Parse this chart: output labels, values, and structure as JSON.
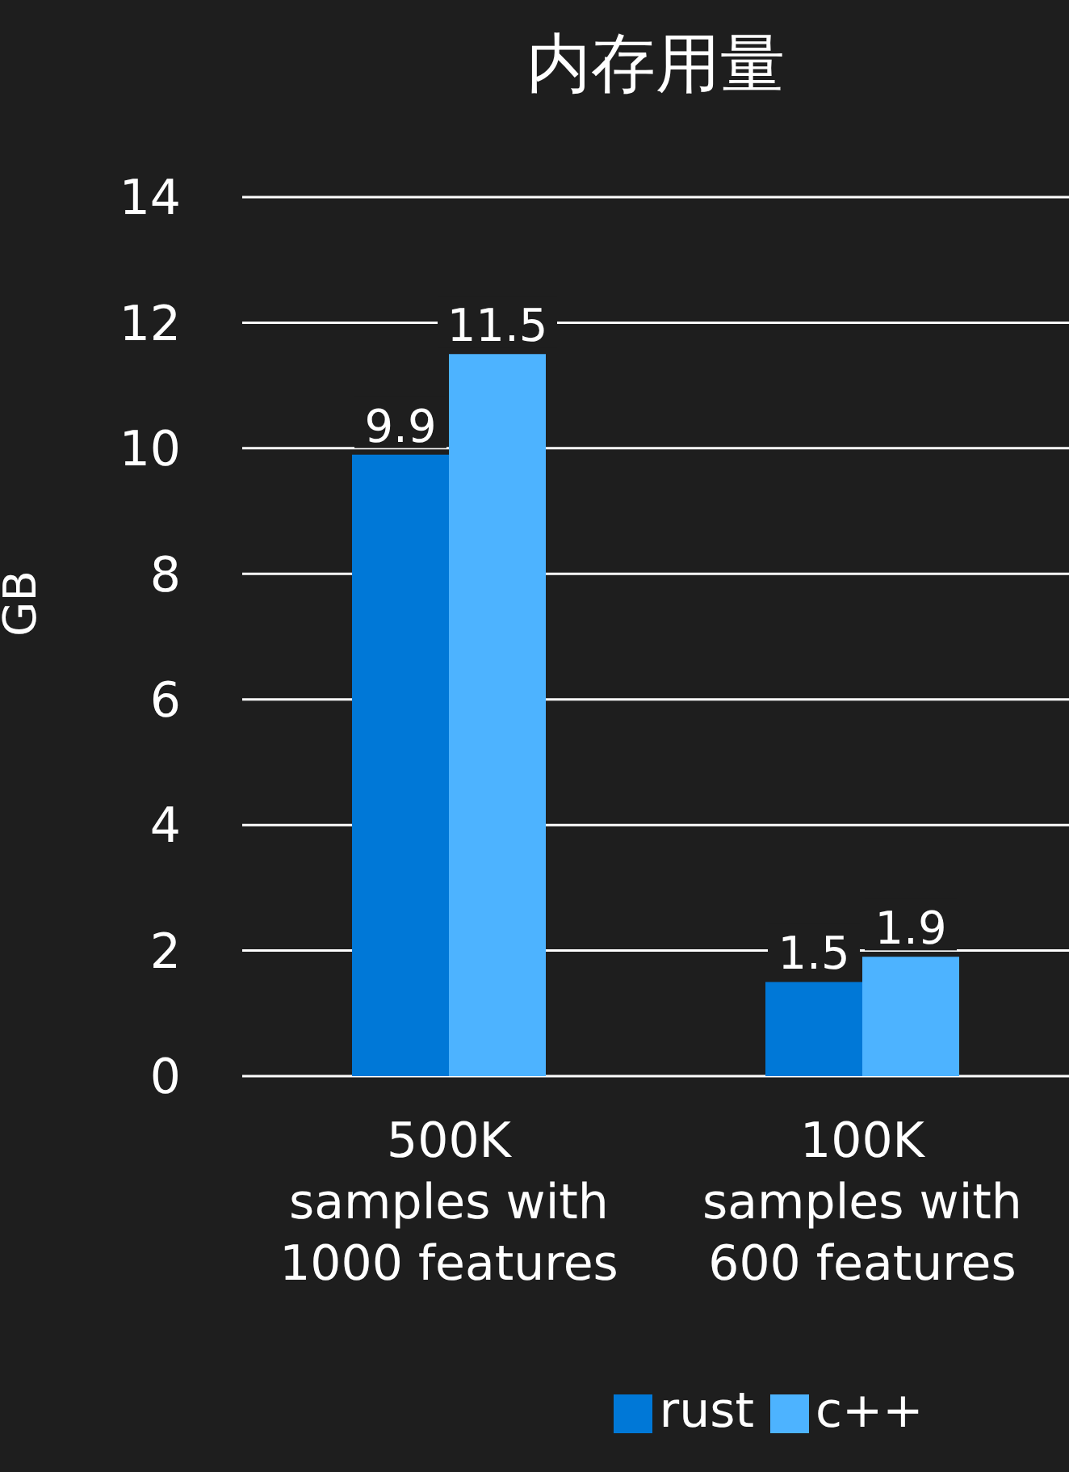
{
  "chart_data": {
    "type": "bar",
    "title": "内存用量",
    "ylabel": "GB",
    "categories": [
      "500K\nsamples with\n1000 features",
      "100K\nsamples with\n600 features"
    ],
    "series": [
      {
        "name": "rust",
        "color": "#0078d7",
        "values": [
          9.9,
          1.5
        ]
      },
      {
        "name": "c++",
        "color": "#4db3ff",
        "values": [
          11.5,
          1.9
        ]
      }
    ],
    "ylim": [
      0,
      14
    ],
    "yticks": [
      0,
      2,
      4,
      6,
      8,
      10,
      12,
      14
    ],
    "grid": "y",
    "legend": "bottom",
    "data_labels": true
  }
}
